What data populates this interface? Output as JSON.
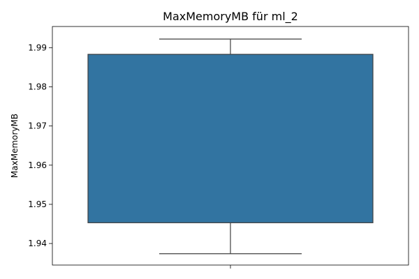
{
  "chart_data": {
    "type": "box",
    "title": "MaxMemoryMB für ml_2",
    "xlabel": "",
    "ylabel": "MaxMemoryMB",
    "ylim": [
      1.9345,
      1.9954
    ],
    "yticks": [
      1.94,
      1.95,
      1.96,
      1.97,
      1.98,
      1.99
    ],
    "ytick_labels": [
      "1.94",
      "1.95",
      "1.96",
      "1.97",
      "1.98",
      "1.99"
    ],
    "grid": false,
    "series": [
      {
        "whisker_low": 1.9374,
        "q1": 1.9453,
        "q3": 1.9883,
        "whisker_high": 1.9922,
        "color": "#3274a1"
      }
    ]
  }
}
